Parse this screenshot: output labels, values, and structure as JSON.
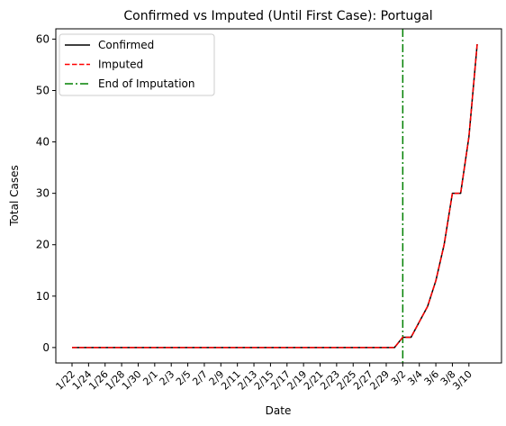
{
  "chart_data": {
    "type": "line",
    "title": "Confirmed vs Imputed (Until First Case): Portugal",
    "xlabel": "Date",
    "ylabel": "Total Cases",
    "x": [
      "1/22",
      "1/23",
      "1/24",
      "1/25",
      "1/26",
      "1/27",
      "1/28",
      "1/29",
      "1/30",
      "1/31",
      "2/1",
      "2/2",
      "2/3",
      "2/4",
      "2/5",
      "2/6",
      "2/7",
      "2/8",
      "2/9",
      "2/10",
      "2/11",
      "2/12",
      "2/13",
      "2/14",
      "2/15",
      "2/16",
      "2/17",
      "2/18",
      "2/19",
      "2/20",
      "2/21",
      "2/22",
      "2/23",
      "2/24",
      "2/25",
      "2/26",
      "2/27",
      "2/28",
      "2/29",
      "3/1",
      "3/2",
      "3/3",
      "3/4",
      "3/5",
      "3/6",
      "3/7",
      "3/8",
      "3/9",
      "3/10",
      "3/11"
    ],
    "x_tick_labels": [
      "1/22",
      "1/24",
      "1/26",
      "1/28",
      "1/30",
      "2/1",
      "2/3",
      "2/5",
      "2/7",
      "2/9",
      "2/11",
      "2/13",
      "2/15",
      "2/17",
      "2/19",
      "2/21",
      "2/23",
      "2/25",
      "2/27",
      "2/29",
      "3/2",
      "3/4",
      "3/6",
      "3/8",
      "3/10"
    ],
    "y_ticks": [
      0,
      10,
      20,
      30,
      40,
      50,
      60
    ],
    "ylim": [
      -3,
      62
    ],
    "series": [
      {
        "name": "Confirmed",
        "color": "#000000",
        "style": "solid",
        "values": [
          0,
          0,
          0,
          0,
          0,
          0,
          0,
          0,
          0,
          0,
          0,
          0,
          0,
          0,
          0,
          0,
          0,
          0,
          0,
          0,
          0,
          0,
          0,
          0,
          0,
          0,
          0,
          0,
          0,
          0,
          0,
          0,
          0,
          0,
          0,
          0,
          0,
          0,
          0,
          0,
          2,
          2,
          5,
          8,
          13,
          20,
          30,
          30,
          41,
          59
        ]
      },
      {
        "name": "Imputed",
        "color": "#ff0000",
        "style": "dashed",
        "values": [
          0,
          0,
          0,
          0,
          0,
          0,
          0,
          0,
          0,
          0,
          0,
          0,
          0,
          0,
          0,
          0,
          0,
          0,
          0,
          0,
          0,
          0,
          0,
          0,
          0,
          0,
          0,
          0,
          0,
          0,
          0,
          0,
          0,
          0,
          0,
          0,
          0,
          0,
          0,
          0,
          2,
          2,
          5,
          8,
          13,
          20,
          30,
          30,
          41,
          59
        ]
      }
    ],
    "vline": {
      "name": "End of Imputation",
      "x": "3/2",
      "color": "#008000",
      "style": "dash-dot"
    },
    "legend": {
      "placement": "top-left",
      "entries": [
        "Confirmed",
        "Imputed",
        "End of Imputation"
      ]
    },
    "grid": false
  }
}
